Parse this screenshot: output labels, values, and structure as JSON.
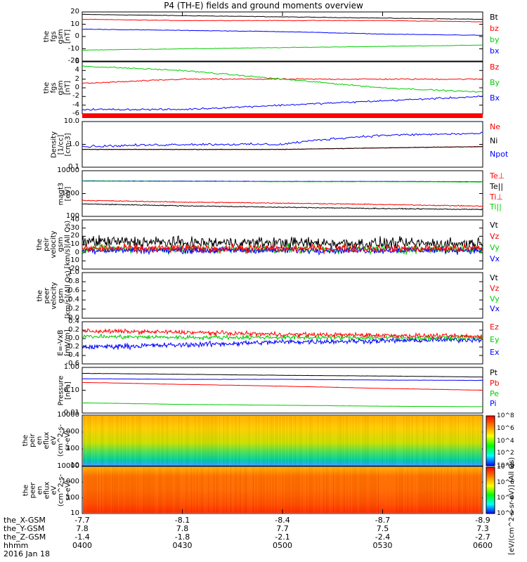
{
  "title": "P4 (TH-E) fields and ground moments overview",
  "panels": [
    {
      "id": "fgs_gsm",
      "ylabel": [
        "the",
        "fgs",
        "gsm",
        "[nT]"
      ],
      "ticks": [
        "20",
        "10",
        "0",
        "-10",
        "-20"
      ],
      "legend": [
        {
          "t": "Bt",
          "c": "#000000"
        },
        {
          "t": "bz",
          "c": "#ff0000"
        },
        {
          "t": "by",
          "c": "#00cc00"
        },
        {
          "t": "bx",
          "c": "#0000ff"
        }
      ]
    },
    {
      "id": "fgs_dsl",
      "ylabel": [
        "the",
        "fgs",
        "gsm",
        "[nT]"
      ],
      "ticks": [
        "6",
        "4",
        "2",
        "0",
        "-2",
        "-4",
        "-6"
      ],
      "legend": [
        {
          "t": "Bz",
          "c": "#ff0000"
        },
        {
          "t": "By",
          "c": "#00cc00"
        },
        {
          "t": "Bx",
          "c": "#0000ff"
        }
      ]
    },
    {
      "id": "density",
      "ylabel": [
        "Density",
        "[1/cc]",
        "[cm-3]"
      ],
      "ticks": [
        "10.0",
        "1.0",
        "0.1"
      ],
      "legend": [
        {
          "t": "Ne",
          "c": "#ff0000"
        },
        {
          "t": "Ni",
          "c": "#000000"
        },
        {
          "t": "Npot",
          "c": "#0000ff"
        }
      ]
    },
    {
      "id": "temp",
      "ylabel": [
        "magt3",
        "[eV]"
      ],
      "ticks": [
        "10000",
        "1000",
        "100"
      ],
      "legend": [
        {
          "t": "Te⊥",
          "c": "#ff0000"
        },
        {
          "t": "Te||",
          "c": "#000000"
        },
        {
          "t": "Ti⊥",
          "c": "#ff0000"
        },
        {
          "t": "Ti||",
          "c": "#00cc00"
        }
      ]
    },
    {
      "id": "peir_vel",
      "ylabel": [
        "the",
        "peir",
        "velocity",
        "gsm",
        "[km/s](All Qs)"
      ],
      "ticks": [
        "40",
        "30",
        "20",
        "10",
        "0",
        "-10",
        "-20"
      ],
      "legend": [
        {
          "t": "Vt",
          "c": "#000000"
        },
        {
          "t": "Vz",
          "c": "#ff0000"
        },
        {
          "t": "Vy",
          "c": "#00cc00"
        },
        {
          "t": "Vx",
          "c": "#0000ff"
        }
      ]
    },
    {
      "id": "peer_vel",
      "ylabel": [
        "the",
        "peer",
        "velocity",
        "gsm",
        "[km/s](All Qs)"
      ],
      "ticks": [
        "1.0",
        "0.8",
        "0.6",
        "0.4",
        "0.2",
        "0.0"
      ],
      "legend": [
        {
          "t": "Vt",
          "c": "#000000"
        },
        {
          "t": "Vz",
          "c": "#ff0000"
        },
        {
          "t": "Vy",
          "c": "#00cc00"
        },
        {
          "t": "Vx",
          "c": "#0000ff"
        }
      ]
    },
    {
      "id": "efield",
      "ylabel": [
        "E=-VxB",
        "[mV/m]"
      ],
      "ticks": [
        "0.4",
        "0.2",
        "0.0",
        "-0.2",
        "-0.4",
        "-0.6"
      ],
      "legend": [
        {
          "t": "Ez",
          "c": "#ff0000"
        },
        {
          "t": "Ey",
          "c": "#00cc00"
        },
        {
          "t": "Ex",
          "c": "#0000ff"
        }
      ]
    },
    {
      "id": "pressure",
      "ylabel": [
        "Pressure",
        "[nPa]"
      ],
      "ticks": [
        "1.00",
        "0.10",
        "0.01"
      ],
      "legend": [
        {
          "t": "Pt",
          "c": "#000000"
        },
        {
          "t": "Pb",
          "c": "#ff0000"
        },
        {
          "t": "Pe",
          "c": "#00cc00"
        },
        {
          "t": "Pi",
          "c": "#0000ff"
        }
      ]
    },
    {
      "id": "peir_en",
      "ylabel": [
        "the",
        "peir",
        "en",
        "eflux",
        "eV",
        "(cm^2-s-",
        "sr-eV)"
      ],
      "ticks": [
        "10000",
        "1000",
        "100",
        "10"
      ],
      "legend": []
    },
    {
      "id": "peer_en",
      "ylabel": [
        "the",
        "peer",
        "en",
        "eflux",
        "eV",
        "(cm^2-s-",
        "sr-eV)"
      ],
      "ticks": [
        "10000",
        "1000",
        "100",
        "10"
      ],
      "legend": []
    }
  ],
  "colorbar": {
    "title": "[eV/(cm^2-s-sr-eV)] (All Qs)",
    "ticks_upper": [
      "10^8",
      "10^6",
      "10^4",
      "10^2",
      "10^0"
    ],
    "ticks_lower": [
      "10^8",
      "10^6",
      "10^4",
      "10^2"
    ]
  },
  "xaxis": {
    "rows": [
      {
        "label": "the_X-GSM",
        "values": [
          "-7.7",
          "-8.1",
          "-8.4",
          "-8.7",
          "-8.9"
        ]
      },
      {
        "label": "the_Y-GSM",
        "values": [
          "7.8",
          "7.8",
          "7.7",
          "7.5",
          "7.3"
        ]
      },
      {
        "label": "the_Z-GSM",
        "values": [
          "-1.4",
          "-1.8",
          "-2.1",
          "-2.4",
          "-2.7"
        ]
      },
      {
        "label": "hhmm",
        "values": [
          "0400",
          "0430",
          "0500",
          "0530",
          "0600"
        ]
      }
    ],
    "date": "2016 Jan 18"
  },
  "chart_data": {
    "type": "line",
    "title": "P4 (TH-E) fields and ground moments overview",
    "x": [
      "0400",
      "0430",
      "0500",
      "0530",
      "0600"
    ],
    "panels": [
      {
        "name": "fgs_gsm",
        "ylim": [
          -20,
          20
        ],
        "series": [
          {
            "name": "Bt",
            "values": [
              18,
              17,
              16,
              15,
              14
            ]
          },
          {
            "name": "bz",
            "values": [
              14,
              13,
              13,
              13,
              12
            ]
          },
          {
            "name": "by",
            "values": [
              -11,
              -10,
              -9,
              -8,
              -7
            ]
          },
          {
            "name": "bx",
            "values": [
              6,
              5,
              4,
              2,
              1
            ]
          }
        ]
      },
      {
        "name": "fgs_dsl",
        "ylim": [
          -6,
          6
        ],
        "series": [
          {
            "name": "Bz",
            "values": [
              1,
              2,
              2,
              2,
              2
            ]
          },
          {
            "name": "By",
            "values": [
              5,
              4,
              2,
              0,
              -1
            ]
          },
          {
            "name": "Bx",
            "values": [
              -5,
              -5,
              -4,
              -3,
              -2
            ]
          }
        ]
      },
      {
        "name": "density",
        "log": true,
        "ylim": [
          0.1,
          10
        ],
        "series": [
          {
            "name": "Ne",
            "values": [
              0.6,
              0.6,
              0.6,
              0.7,
              0.8
            ]
          },
          {
            "name": "Ni",
            "values": [
              0.6,
              0.6,
              0.6,
              0.7,
              0.8
            ]
          },
          {
            "name": "Npot",
            "values": [
              0.8,
              1.0,
              1.0,
              2.5,
              3.0
            ]
          }
        ]
      },
      {
        "name": "temp",
        "log": true,
        "ylim": [
          100,
          10000
        ],
        "series": [
          {
            "name": "Te⊥",
            "values": [
              3500,
              3400,
              3300,
              3300,
              3200
            ]
          },
          {
            "name": "Te||",
            "values": [
              3600,
              3500,
              3400,
              3400,
              3300
            ]
          },
          {
            "name": "Ti⊥",
            "values": [
              500,
              420,
              380,
              330,
              280
            ]
          },
          {
            "name": "Ti||",
            "values": [
              350,
              290,
              250,
              220,
              200
            ]
          }
        ]
      },
      {
        "name": "peir_vel",
        "ylim": [
          -20,
          40
        ],
        "series": [
          {
            "name": "Vt",
            "values": [
              14,
              12,
              12,
              11,
              11
            ]
          },
          {
            "name": "Vz",
            "values": [
              5,
              5,
              5,
              5,
              5
            ]
          },
          {
            "name": "Vy",
            "values": [
              5,
              4,
              4,
              4,
              4
            ]
          },
          {
            "name": "Vx",
            "values": [
              3,
              3,
              3,
              3,
              3
            ]
          }
        ]
      },
      {
        "name": "efield",
        "ylim": [
          -0.6,
          0.4
        ],
        "series": [
          {
            "name": "Ez",
            "values": [
              0.18,
              0.15,
              0.1,
              0.08,
              0.05
            ]
          },
          {
            "name": "Ey",
            "values": [
              0.05,
              0.03,
              0.03,
              0.02,
              0.02
            ]
          },
          {
            "name": "Ex",
            "values": [
              -0.2,
              -0.15,
              -0.08,
              -0.05,
              -0.02
            ]
          }
        ]
      },
      {
        "name": "pressure",
        "log": true,
        "ylim": [
          0.01,
          1
        ],
        "series": [
          {
            "name": "Pt",
            "values": [
              0.55,
              0.5,
              0.45,
              0.42,
              0.38
            ]
          },
          {
            "name": "Pb",
            "values": [
              0.22,
              0.18,
              0.15,
              0.12,
              0.1
            ]
          },
          {
            "name": "Pe",
            "values": [
              0.028,
              0.024,
              0.022,
              0.02,
              0.019
            ]
          },
          {
            "name": "Pi",
            "values": [
              0.32,
              0.3,
              0.3,
              0.28,
              0.27
            ]
          }
        ]
      }
    ]
  }
}
